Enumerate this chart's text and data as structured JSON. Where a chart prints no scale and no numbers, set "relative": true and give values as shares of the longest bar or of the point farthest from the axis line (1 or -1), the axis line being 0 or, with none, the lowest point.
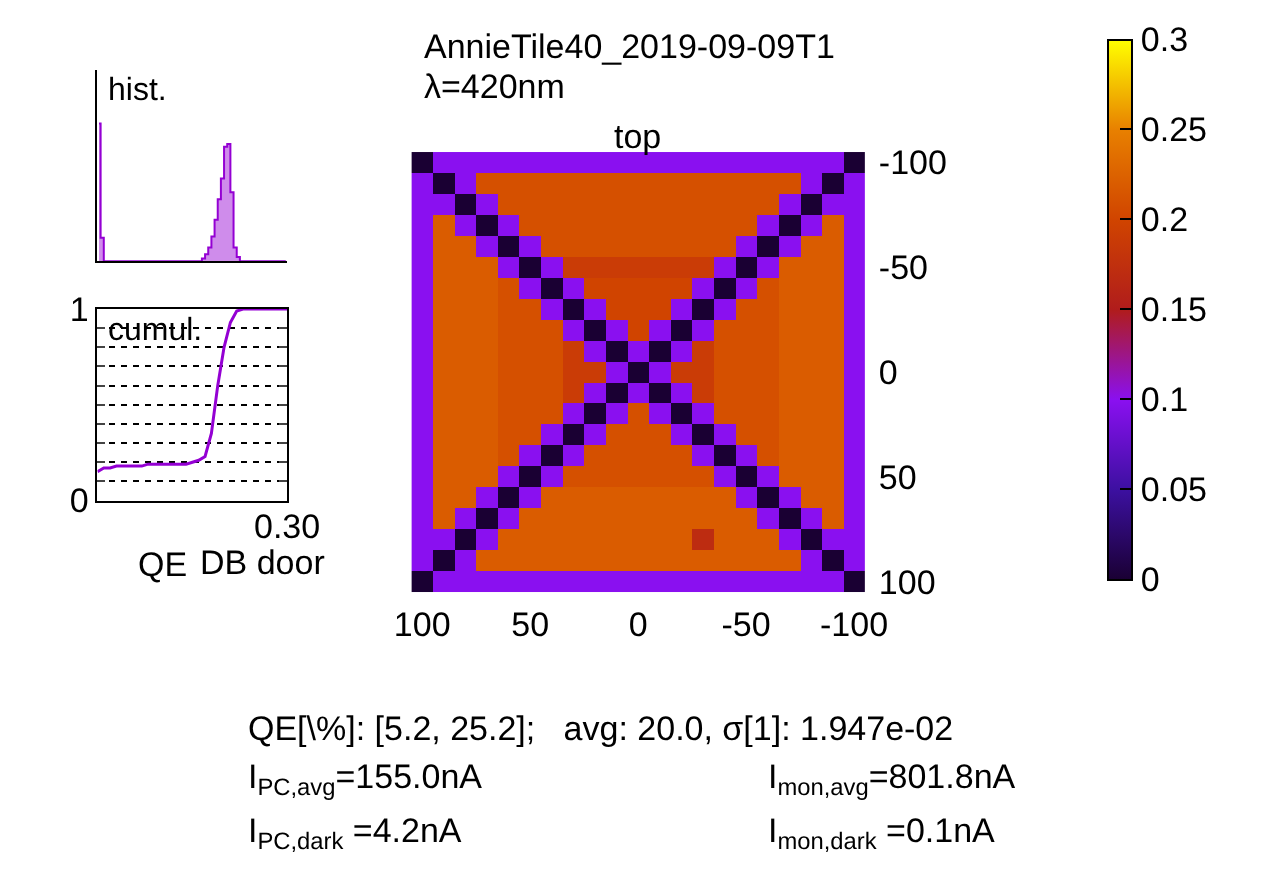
{
  "chart_data": [
    {
      "type": "area",
      "title": "hist.",
      "relative": true,
      "color": "#9400d3",
      "categories": [
        null,
        null,
        null,
        null,
        null,
        null,
        null,
        null,
        null,
        null,
        null,
        null,
        null,
        null,
        null,
        null,
        null,
        null,
        null,
        null,
        null,
        null,
        null,
        null,
        null,
        null,
        null,
        null,
        null,
        null,
        null,
        null,
        null,
        null,
        null,
        null,
        null,
        null,
        null,
        null,
        null,
        null,
        null,
        null,
        null,
        null,
        null,
        null,
        null,
        null,
        null,
        null,
        null,
        null,
        null,
        null,
        null,
        null,
        null,
        null
      ],
      "values": [
        1,
        0.17,
        0,
        0,
        0,
        0,
        0,
        0,
        0,
        0,
        0,
        0,
        0,
        0,
        0,
        0,
        0,
        0,
        0,
        0,
        0,
        0,
        0,
        0,
        0,
        0,
        0,
        0,
        0,
        0,
        0,
        0,
        0,
        0.02,
        0.05,
        0.1,
        0.18,
        0.3,
        0.45,
        0.6,
        0.83,
        0.85,
        0.5,
        0.1,
        0.03,
        0,
        0,
        0,
        0,
        0,
        0,
        0,
        0,
        0,
        0,
        0,
        0,
        0,
        0,
        0
      ]
    },
    {
      "type": "heatmap",
      "title": "AnnieTile40_2019-09-09T1",
      "subtitle": "λ=420nm",
      "x": [
        100,
        90,
        80,
        70,
        60,
        50,
        40,
        30,
        20,
        10,
        0,
        -10,
        -20,
        -30,
        -40,
        -50,
        -60,
        -70,
        -80,
        -90,
        -100
      ],
      "y": [
        -100,
        -90,
        -80,
        -70,
        -60,
        -50,
        -40,
        -30,
        -20,
        -10,
        0,
        10,
        20,
        30,
        40,
        50,
        60,
        70,
        80,
        90,
        100
      ],
      "xlim": [
        105,
        -105
      ],
      "ylim": [
        105,
        -105
      ],
      "xticks": [
        100,
        50,
        0,
        -50,
        -100
      ],
      "yticks": [
        -100,
        -50,
        0,
        50,
        100
      ],
      "clim": [
        0,
        0.3
      ],
      "cticks": [
        0,
        0.05,
        0.1,
        0.15,
        0.2,
        0.25,
        0.3
      ],
      "colors": [
        "#1a0033",
        "#3c10a0",
        "#8a10f0",
        "#b01c1c",
        "#d04400",
        "#e88000",
        "#ffff00"
      ],
      "cells": [
        [
          0,
          0.1,
          0.1,
          0.1,
          0.1,
          0.1,
          0.1,
          0.1,
          0.1,
          0.1,
          0.1,
          0.1,
          0.1,
          0.1,
          0.1,
          0.1,
          0.1,
          0.1,
          0.1,
          0.1,
          0
        ],
        [
          0.1,
          0,
          0.1,
          0.21,
          0.21,
          0.21,
          0.21,
          0.21,
          0.21,
          0.21,
          0.21,
          0.21,
          0.21,
          0.21,
          0.21,
          0.21,
          0.21,
          0.21,
          0.1,
          0,
          0.1
        ],
        [
          0.1,
          0.1,
          0,
          0.1,
          0.21,
          0.21,
          0.21,
          0.21,
          0.21,
          0.21,
          0.21,
          0.21,
          0.21,
          0.21,
          0.21,
          0.21,
          0.21,
          0.1,
          0,
          0.1,
          0.1
        ],
        [
          0.1,
          0.22,
          0.1,
          0,
          0.1,
          0.21,
          0.21,
          0.21,
          0.21,
          0.21,
          0.21,
          0.21,
          0.21,
          0.21,
          0.21,
          0.21,
          0.1,
          0,
          0.1,
          0.22,
          0.1
        ],
        [
          0.1,
          0.22,
          0.22,
          0.1,
          0,
          0.1,
          0.21,
          0.21,
          0.21,
          0.21,
          0.21,
          0.21,
          0.21,
          0.21,
          0.21,
          0.1,
          0,
          0.1,
          0.22,
          0.22,
          0.1
        ],
        [
          0.1,
          0.22,
          0.22,
          0.22,
          0.1,
          0,
          0.1,
          0.19,
          0.19,
          0.19,
          0.19,
          0.19,
          0.19,
          0.19,
          0.1,
          0,
          0.1,
          0.22,
          0.22,
          0.22,
          0.1
        ],
        [
          0.1,
          0.22,
          0.22,
          0.22,
          0.21,
          0.1,
          0,
          0.1,
          0.2,
          0.2,
          0.2,
          0.2,
          0.2,
          0.1,
          0,
          0.1,
          0.21,
          0.22,
          0.22,
          0.22,
          0.1
        ],
        [
          0.1,
          0.22,
          0.22,
          0.22,
          0.21,
          0.21,
          0.1,
          0,
          0.1,
          0.2,
          0.2,
          0.2,
          0.1,
          0,
          0.1,
          0.21,
          0.21,
          0.22,
          0.22,
          0.22,
          0.1
        ],
        [
          0.1,
          0.22,
          0.22,
          0.22,
          0.21,
          0.21,
          0.21,
          0.1,
          0,
          0.1,
          0.2,
          0.1,
          0,
          0.1,
          0.21,
          0.21,
          0.21,
          0.22,
          0.22,
          0.22,
          0.1
        ],
        [
          0.1,
          0.22,
          0.22,
          0.22,
          0.21,
          0.21,
          0.21,
          0.19,
          0.1,
          0,
          0.1,
          0,
          0.1,
          0.19,
          0.21,
          0.21,
          0.21,
          0.22,
          0.22,
          0.22,
          0.1
        ],
        [
          0.1,
          0.22,
          0.22,
          0.22,
          0.21,
          0.21,
          0.21,
          0.19,
          0.19,
          0.1,
          0,
          0.1,
          0.19,
          0.19,
          0.21,
          0.21,
          0.21,
          0.22,
          0.22,
          0.22,
          0.1
        ],
        [
          0.1,
          0.22,
          0.22,
          0.22,
          0.21,
          0.21,
          0.21,
          0.19,
          0.1,
          0,
          0.1,
          0,
          0.1,
          0.19,
          0.21,
          0.21,
          0.21,
          0.22,
          0.22,
          0.22,
          0.1
        ],
        [
          0.1,
          0.22,
          0.22,
          0.22,
          0.21,
          0.21,
          0.21,
          0.1,
          0,
          0.1,
          0.21,
          0.1,
          0,
          0.1,
          0.21,
          0.21,
          0.21,
          0.22,
          0.22,
          0.22,
          0.1
        ],
        [
          0.1,
          0.22,
          0.22,
          0.22,
          0.21,
          0.21,
          0.1,
          0,
          0.1,
          0.21,
          0.21,
          0.21,
          0.1,
          0,
          0.1,
          0.21,
          0.21,
          0.22,
          0.22,
          0.22,
          0.1
        ],
        [
          0.1,
          0.22,
          0.22,
          0.22,
          0.21,
          0.1,
          0,
          0.1,
          0.21,
          0.21,
          0.21,
          0.21,
          0.21,
          0.1,
          0,
          0.1,
          0.21,
          0.22,
          0.22,
          0.22,
          0.1
        ],
        [
          0.1,
          0.22,
          0.22,
          0.22,
          0.1,
          0,
          0.1,
          0.21,
          0.21,
          0.21,
          0.21,
          0.21,
          0.21,
          0.21,
          0.1,
          0,
          0.1,
          0.22,
          0.22,
          0.22,
          0.1
        ],
        [
          0.1,
          0.22,
          0.22,
          0.1,
          0,
          0.1,
          0.22,
          0.22,
          0.22,
          0.22,
          0.22,
          0.22,
          0.22,
          0.22,
          0.22,
          0.1,
          0,
          0.1,
          0.22,
          0.22,
          0.1
        ],
        [
          0.1,
          0.22,
          0.1,
          0,
          0.1,
          0.22,
          0.22,
          0.22,
          0.22,
          0.22,
          0.22,
          0.22,
          0.22,
          0.22,
          0.22,
          0.22,
          0.1,
          0,
          0.1,
          0.22,
          0.1
        ],
        [
          0.1,
          0.1,
          0,
          0.1,
          0.22,
          0.22,
          0.22,
          0.22,
          0.22,
          0.22,
          0.22,
          0.22,
          0.22,
          0.17,
          0.22,
          0.22,
          0.22,
          0.1,
          0,
          0.1,
          0.1
        ],
        [
          0.1,
          0,
          0.1,
          0.22,
          0.22,
          0.22,
          0.22,
          0.22,
          0.22,
          0.22,
          0.22,
          0.22,
          0.22,
          0.22,
          0.22,
          0.22,
          0.22,
          0.22,
          0.1,
          0,
          0.1
        ],
        [
          0,
          0.1,
          0.1,
          0.1,
          0.1,
          0.1,
          0.1,
          0.1,
          0.1,
          0.1,
          0.1,
          0.1,
          0.1,
          0.1,
          0.1,
          0.1,
          0.1,
          0.1,
          0.1,
          0.1,
          0
        ]
      ],
      "annotations": [
        "top",
        "DB door",
        "QE[\\%]: [5.2, 25.2];   avg: 20.0, σ[1]: 1.947e-02",
        "I$_{PC,avg}$=155.0nA",
        "I$_{mon,avg}$=801.8nA",
        "I$_{PC,dark}$ =4.2nA",
        "I$_{mon,dark}$ =0.1nA"
      ]
    },
    {
      "type": "line",
      "title": "cumul.",
      "xlabel": "QE",
      "grid": "y",
      "categories": [
        null,
        null,
        null,
        null,
        null,
        null,
        null,
        null,
        null,
        null,
        null,
        null,
        null,
        null,
        null,
        null,
        null,
        null,
        null,
        null,
        null,
        null,
        null,
        null,
        null,
        null,
        null,
        null,
        null,
        null,
        null
      ],
      "series": [
        {
          "color": "#9400d3",
          "values": [
            0.15,
            0.17,
            0.17,
            0.18,
            0.18,
            0.18,
            0.18,
            0.18,
            0.19,
            0.19,
            0.19,
            0.19,
            0.19,
            0.19,
            0.19,
            0.2,
            0.21,
            0.23,
            0.35,
            0.6,
            0.8,
            0.93,
            0.99,
            1,
            1,
            1,
            1,
            1,
            1,
            1,
            1
          ]
        }
      ],
      "ylim": [
        0,
        1
      ],
      "yticks": [
        0,
        {
          "value": 0.1,
          "label": null
        },
        {
          "value": 0.2,
          "label": null
        },
        {
          "value": 0.3,
          "label": null
        },
        {
          "value": 0.4,
          "label": null
        },
        {
          "value": 0.5,
          "label": null
        },
        {
          "value": 0.6,
          "label": null
        },
        {
          "value": 0.7,
          "label": null
        },
        {
          "value": 0.8,
          "label": null
        },
        {
          "value": 0.9,
          "label": null
        },
        1
      ],
      "annotations": [
        "0.30"
      ]
    }
  ]
}
